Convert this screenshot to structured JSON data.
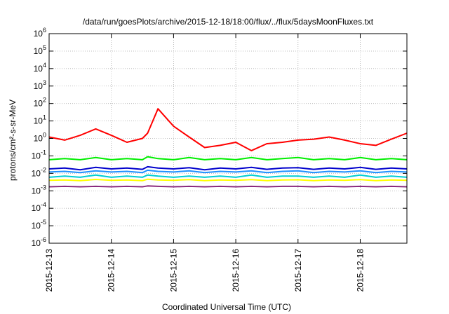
{
  "chart_data": {
    "type": "line",
    "title": "/data/run/goesPlots/archive/2015-12-18/18:00/flux/../flux/5daysMoonFluxes.txt",
    "xlabel": "Coordinated Universal Time (UTC)",
    "ylabel": "protons/cm²-s-sr-MeV",
    "yscale": "log",
    "ylim": [
      1e-06,
      1000000.0
    ],
    "xlim": [
      "2015-12-13T00:00",
      "2015-12-18T18:00"
    ],
    "grid": true,
    "y_ticks": [
      {
        "value": 1e-06,
        "base": "10",
        "exp": "-6"
      },
      {
        "value": 1e-05,
        "base": "10",
        "exp": "-5"
      },
      {
        "value": 0.0001,
        "base": "10",
        "exp": "-4"
      },
      {
        "value": 0.001,
        "base": "10",
        "exp": "-3"
      },
      {
        "value": 0.01,
        "base": "10",
        "exp": "-2"
      },
      {
        "value": 0.1,
        "base": "10",
        "exp": "-1"
      },
      {
        "value": 1,
        "base": "10",
        "exp": "0"
      },
      {
        "value": 10,
        "base": "10",
        "exp": "1"
      },
      {
        "value": 100,
        "base": "10",
        "exp": "2"
      },
      {
        "value": 1000,
        "base": "10",
        "exp": "3"
      },
      {
        "value": 10000,
        "base": "10",
        "exp": "4"
      },
      {
        "value": 100000,
        "base": "10",
        "exp": "5"
      },
      {
        "value": 1000000,
        "base": "10",
        "exp": "6"
      }
    ],
    "x_ticks": [
      "2015-12-13",
      "2015-12-14",
      "2015-12-15",
      "2015-12-16",
      "2015-12-17",
      "2015-12-18"
    ],
    "series": [
      {
        "color": "#ff0000",
        "x": [
          "2015-12-13T00:00",
          "2015-12-13T06:00",
          "2015-12-13T12:00",
          "2015-12-13T18:00",
          "2015-12-14T00:00",
          "2015-12-14T06:00",
          "2015-12-14T12:00",
          "2015-12-14T14:00",
          "2015-12-14T18:00",
          "2015-12-15T00:00",
          "2015-12-15T06:00",
          "2015-12-15T12:00",
          "2015-12-15T18:00",
          "2015-12-16T00:00",
          "2015-12-16T06:00",
          "2015-12-16T12:00",
          "2015-12-16T18:00",
          "2015-12-17T00:00",
          "2015-12-17T06:00",
          "2015-12-17T12:00",
          "2015-12-17T18:00",
          "2015-12-18T00:00",
          "2015-12-18T06:00",
          "2015-12-18T12:00",
          "2015-12-18T18:00"
        ],
        "values": [
          1.2,
          0.8,
          1.5,
          3.5,
          1.5,
          0.6,
          1.0,
          2.0,
          50,
          5,
          1.2,
          0.3,
          0.4,
          0.6,
          0.2,
          0.5,
          0.6,
          0.8,
          0.9,
          1.2,
          0.8,
          0.5,
          0.4,
          0.9,
          2.0
        ]
      },
      {
        "color": "#00ee00",
        "values": [
          0.06,
          0.07,
          0.06,
          0.08,
          0.06,
          0.07,
          0.06,
          0.09,
          0.07,
          0.06,
          0.08,
          0.06,
          0.07,
          0.06,
          0.08,
          0.06,
          0.07,
          0.08,
          0.06,
          0.07,
          0.06,
          0.08,
          0.06,
          0.07,
          0.06
        ]
      },
      {
        "color": "#0000cc",
        "values": [
          0.018,
          0.02,
          0.016,
          0.022,
          0.018,
          0.02,
          0.017,
          0.024,
          0.02,
          0.018,
          0.021,
          0.016,
          0.02,
          0.018,
          0.022,
          0.017,
          0.02,
          0.021,
          0.017,
          0.02,
          0.018,
          0.022,
          0.017,
          0.02,
          0.018
        ]
      },
      {
        "color": "#1e90ff",
        "values": [
          0.012,
          0.013,
          0.011,
          0.014,
          0.012,
          0.013,
          0.011,
          0.015,
          0.013,
          0.012,
          0.014,
          0.011,
          0.013,
          0.012,
          0.014,
          0.011,
          0.013,
          0.014,
          0.011,
          0.013,
          0.012,
          0.014,
          0.011,
          0.013,
          0.012
        ]
      },
      {
        "color": "#00ced1",
        "values": [
          0.006,
          0.007,
          0.006,
          0.008,
          0.006,
          0.007,
          0.006,
          0.008,
          0.007,
          0.006,
          0.007,
          0.006,
          0.007,
          0.006,
          0.008,
          0.006,
          0.007,
          0.007,
          0.006,
          0.007,
          0.006,
          0.008,
          0.006,
          0.007,
          0.006
        ]
      },
      {
        "color": "#ffff00",
        "values": [
          0.004,
          0.0042,
          0.0038,
          0.0045,
          0.004,
          0.0042,
          0.0038,
          0.0046,
          0.0042,
          0.004,
          0.0044,
          0.0038,
          0.0042,
          0.004,
          0.0044,
          0.0038,
          0.0042,
          0.0043,
          0.0038,
          0.0042,
          0.004,
          0.0044,
          0.0038,
          0.0042,
          0.004
        ]
      },
      {
        "color": "#8b2c7e",
        "values": [
          0.0017,
          0.0018,
          0.0017,
          0.0018,
          0.0017,
          0.0018,
          0.0017,
          0.0019,
          0.0018,
          0.0017,
          0.0018,
          0.0017,
          0.0018,
          0.0017,
          0.0018,
          0.0017,
          0.0018,
          0.0018,
          0.0017,
          0.0018,
          0.0017,
          0.0018,
          0.0017,
          0.0018,
          0.0017
        ]
      }
    ]
  }
}
